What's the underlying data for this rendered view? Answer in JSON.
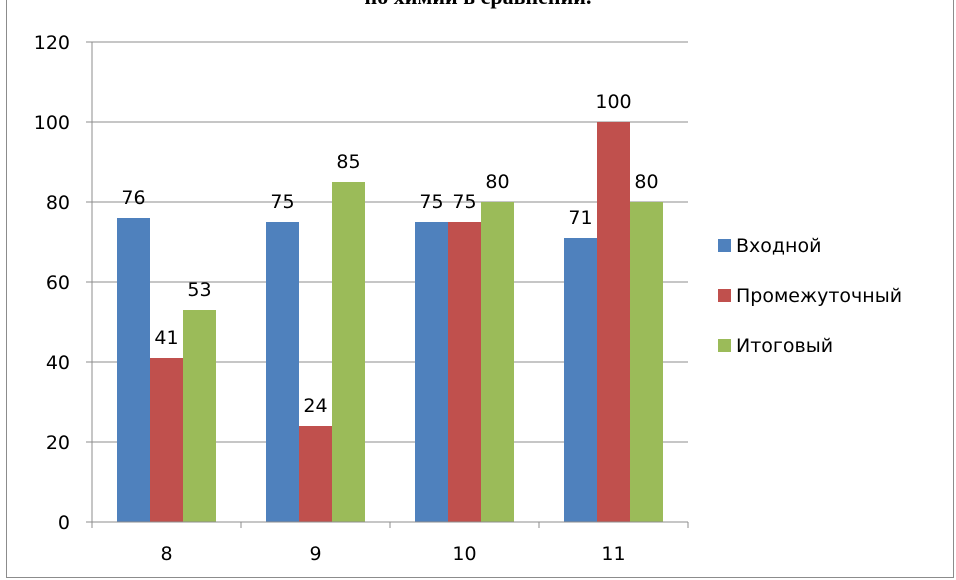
{
  "chart_data": {
    "type": "bar",
    "title": "по химии в сравнении.",
    "categories": [
      "8",
      "9",
      "10",
      "11"
    ],
    "series": [
      {
        "name": "Входной",
        "values": [
          76,
          75,
          75,
          71
        ],
        "color": "#4f81bd"
      },
      {
        "name": "Промежуточный",
        "values": [
          41,
          24,
          75,
          100
        ],
        "color": "#c0504d"
      },
      {
        "name": "Итоговый",
        "values": [
          53,
          85,
          80,
          80
        ],
        "color": "#9bbb59"
      }
    ],
    "ylim": [
      0,
      120
    ],
    "yticks": [
      "0",
      "20",
      "40",
      "60",
      "80",
      "100",
      "120"
    ],
    "grid": true,
    "legend": "right"
  }
}
